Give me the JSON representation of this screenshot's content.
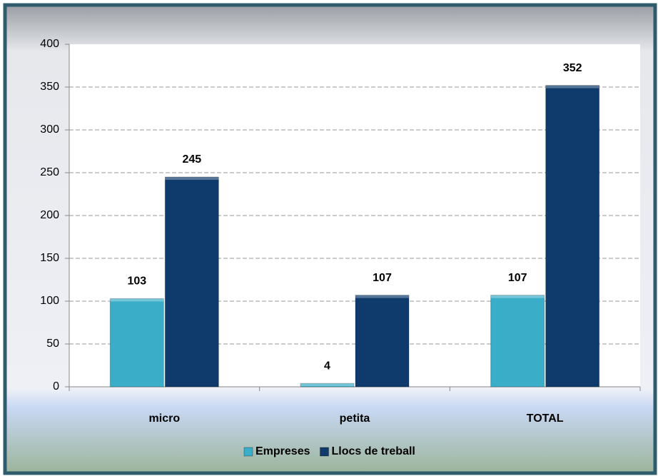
{
  "chart_data": {
    "type": "bar",
    "categories": [
      "micro",
      "petita",
      "TOTAL"
    ],
    "series": [
      {
        "name": "Empreses",
        "color": "#3aaec8",
        "values": [
          103,
          4,
          107
        ]
      },
      {
        "name": "Llocs de treball",
        "color": "#0e3b6c",
        "values": [
          245,
          107,
          352
        ]
      }
    ],
    "ylim": [
      0,
      400
    ],
    "yticks": [
      0,
      50,
      100,
      150,
      200,
      250,
      300,
      350,
      400
    ],
    "grid": true,
    "legend": "bottom",
    "data_labels": true
  }
}
